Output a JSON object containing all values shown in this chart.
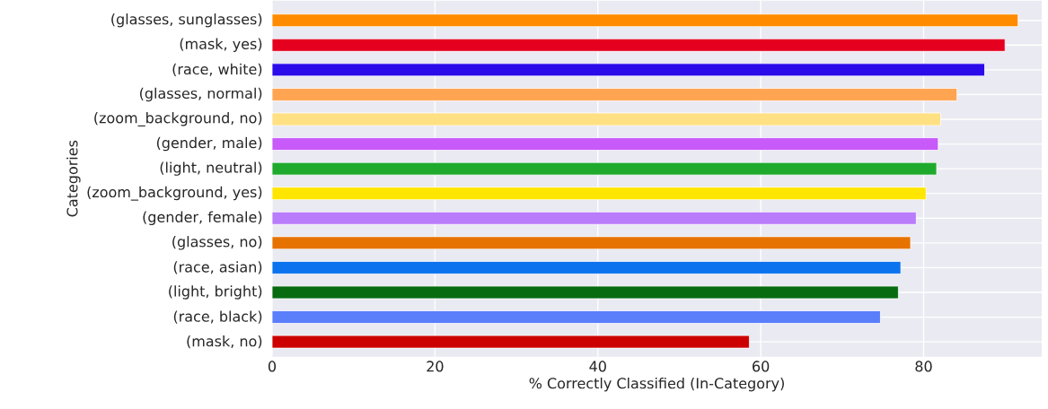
{
  "chart_data": {
    "type": "bar",
    "orientation": "horizontal",
    "categories": [
      "(glasses, sunglasses)",
      "(mask, yes)",
      "(race, white)",
      "(glasses, normal)",
      "(zoom_background, no)",
      "(gender, male)",
      "(light, neutral)",
      "(zoom_background, yes)",
      "(gender, female)",
      "(glasses, no)",
      "(race, asian)",
      "(light, bright)",
      "(race, black)",
      "(mask, no)"
    ],
    "values": [
      91.6,
      90.0,
      87.5,
      84.1,
      82.1,
      81.8,
      81.6,
      80.3,
      79.1,
      78.4,
      77.2,
      76.9,
      74.7,
      58.6
    ],
    "colors": [
      "#ff8c00",
      "#e50020",
      "#2b0bea",
      "#ffa552",
      "#ffe082",
      "#c75af9",
      "#1faa2e",
      "#ffe600",
      "#b97cfa",
      "#e67200",
      "#0b73ee",
      "#086b10",
      "#5b7efb",
      "#cc0000"
    ],
    "xlabel": "% Correctly Classified (In-Category)",
    "ylabel": "Categories",
    "xlim": [
      0,
      94.5
    ],
    "xticks": [
      0,
      20,
      40,
      60,
      80
    ],
    "grid": true
  }
}
